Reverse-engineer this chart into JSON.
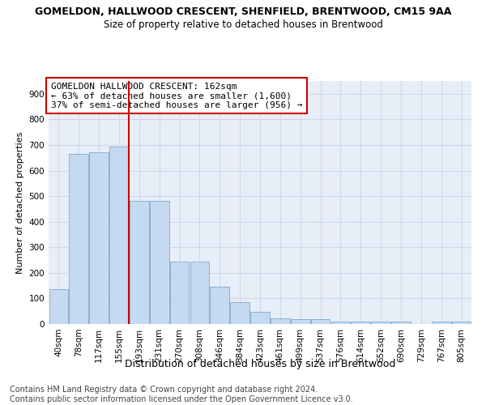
{
  "title1": "GOMELDON, HALLWOOD CRESCENT, SHENFIELD, BRENTWOOD, CM15 9AA",
  "title2": "Size of property relative to detached houses in Brentwood",
  "xlabel": "Distribution of detached houses by size in Brentwood",
  "ylabel": "Number of detached properties",
  "footer1": "Contains HM Land Registry data © Crown copyright and database right 2024.",
  "footer2": "Contains public sector information licensed under the Open Government Licence v3.0.",
  "categories": [
    "40sqm",
    "78sqm",
    "117sqm",
    "155sqm",
    "193sqm",
    "231sqm",
    "270sqm",
    "308sqm",
    "346sqm",
    "384sqm",
    "423sqm",
    "461sqm",
    "499sqm",
    "537sqm",
    "576sqm",
    "614sqm",
    "652sqm",
    "690sqm",
    "729sqm",
    "767sqm",
    "805sqm"
  ],
  "values": [
    135,
    665,
    670,
    695,
    480,
    480,
    245,
    245,
    145,
    85,
    47,
    22,
    18,
    18,
    10,
    10,
    8,
    8,
    0,
    8,
    8
  ],
  "bar_color": "#c5d9f0",
  "bar_edge_color": "#7aabcc",
  "annotation_box_text": "GOMELDON HALLWOOD CRESCENT: 162sqm\n← 63% of detached houses are smaller (1,600)\n37% of semi-detached houses are larger (956) →",
  "annotation_box_color": "#ffffff",
  "annotation_box_edge_color": "#cc0000",
  "vline_color": "#cc0000",
  "vline_x_index": 3.5,
  "ylim": [
    0,
    950
  ],
  "yticks": [
    0,
    100,
    200,
    300,
    400,
    500,
    600,
    700,
    800,
    900
  ],
  "grid_color": "#d0d8e8",
  "bg_color": "#e8eef8",
  "title1_fontsize": 9,
  "title2_fontsize": 8.5,
  "xlabel_fontsize": 9,
  "ylabel_fontsize": 8,
  "tick_fontsize": 7.5,
  "annotation_fontsize": 8,
  "footer_fontsize": 7
}
